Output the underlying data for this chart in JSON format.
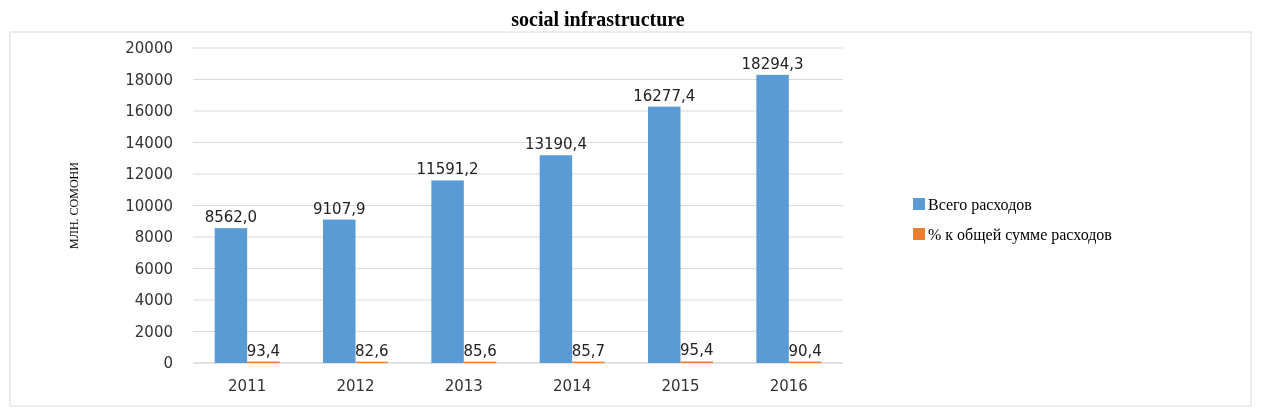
{
  "chart_data": {
    "type": "bar",
    "title": "social infrastructure",
    "ylabel": "МЛН. СОМОНИ",
    "categories": [
      "2011",
      "2012",
      "2013",
      "2014",
      "2015",
      "2016"
    ],
    "series": [
      {
        "name": "Всего расходов",
        "color": "#5b9bd5",
        "values": [
          8562.0,
          9107.9,
          11591.2,
          13190.4,
          16277.4,
          18294.3
        ],
        "value_labels": [
          "8562,0",
          "9107,9",
          "11591,2",
          "13190,4",
          "16277,4",
          "18294,3"
        ]
      },
      {
        "name": "% к общей сумме расходов",
        "color": "#ed7d31",
        "values": [
          93.4,
          82.6,
          85.6,
          85.7,
          95.4,
          90.4
        ],
        "value_labels": [
          "93,4",
          "82,6",
          "85,6",
          "85,7",
          "95,4",
          "90,4"
        ]
      }
    ],
    "ylim": [
      0,
      20000
    ],
    "yticks": [
      0,
      2000,
      4000,
      6000,
      8000,
      10000,
      12000,
      14000,
      16000,
      18000,
      20000
    ],
    "grid": "y",
    "legend": "right"
  }
}
